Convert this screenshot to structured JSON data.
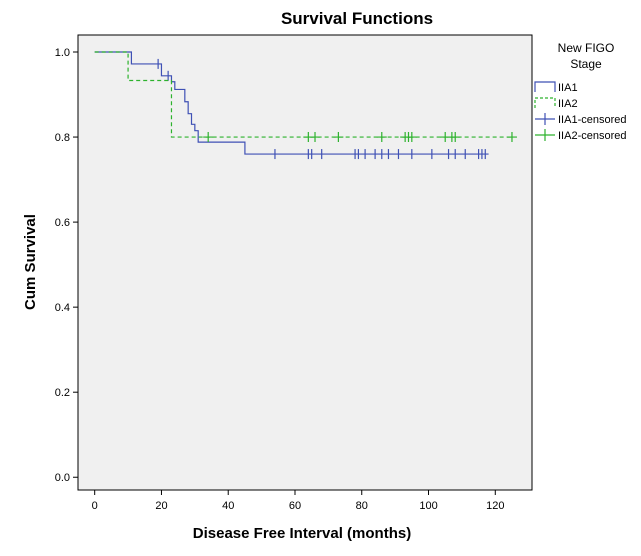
{
  "chart_data": {
    "type": "line",
    "title": "Survival Functions",
    "xlabel": "Disease Free Interval (months)",
    "ylabel": "Cum Survival",
    "xlim": [
      -5,
      131
    ],
    "ylim": [
      -0.03,
      1.04
    ],
    "x_ticks": [
      0,
      20,
      40,
      60,
      80,
      100,
      120
    ],
    "x_tick_labels": [
      "0",
      "20",
      "40",
      "60",
      "80",
      "100",
      "120"
    ],
    "y_ticks": [
      0.0,
      0.2,
      0.4,
      0.6,
      0.8,
      1.0
    ],
    "y_tick_labels": [
      "0.0",
      "0.2",
      "0.4",
      "0.6",
      "0.8",
      "1.0"
    ],
    "grid": false,
    "legend": {
      "title_line1": "New FIGO",
      "title_line2": "Stage",
      "position": "right",
      "entries": [
        "IIA1",
        "IIA2",
        "IIA1-censored",
        "IIA2-censored"
      ]
    },
    "series": [
      {
        "name": "IIA1",
        "color": "#3f51b5",
        "style": "solid",
        "steps": [
          [
            0,
            1.0
          ],
          [
            11,
            0.972
          ],
          [
            20,
            0.944
          ],
          [
            23,
            0.93
          ],
          [
            24,
            0.912
          ],
          [
            27,
            0.883
          ],
          [
            28,
            0.855
          ],
          [
            29,
            0.83
          ],
          [
            30,
            0.815
          ],
          [
            31,
            0.788
          ],
          [
            45,
            0.76
          ]
        ],
        "end_x": 118,
        "censored_x": [
          19,
          22,
          54,
          64,
          65,
          68,
          78,
          79,
          81,
          84,
          86,
          88,
          91,
          95,
          101,
          106,
          108,
          111,
          115,
          116,
          117
        ]
      },
      {
        "name": "IIA2",
        "color": "#2db22d",
        "style": "dashed",
        "steps": [
          [
            0,
            1.0
          ],
          [
            10,
            0.933
          ],
          [
            23,
            0.8
          ]
        ],
        "end_x": 125,
        "censored_x": [
          34,
          64,
          66,
          73,
          86,
          93,
          94,
          95,
          105,
          107,
          108,
          125
        ]
      }
    ]
  }
}
